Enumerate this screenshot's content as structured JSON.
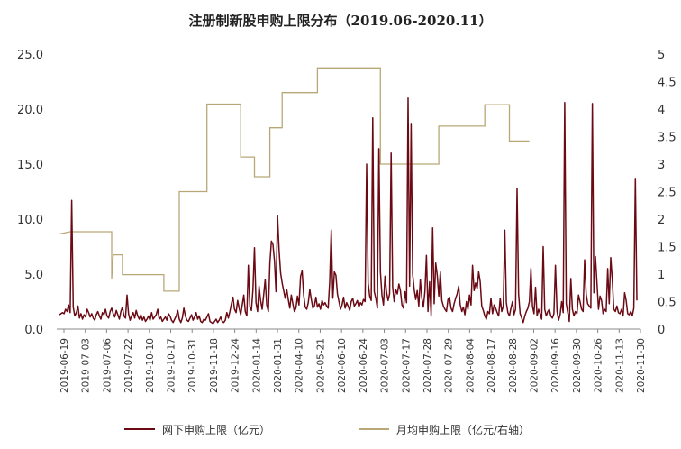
{
  "chart_data": {
    "type": "line",
    "title": "注册制新股申购上限分布（2019.06-2020.11）",
    "grid": false,
    "legend_position": "bottom",
    "colors": {
      "series1": "#6b0a14",
      "series2": "#b8a878"
    },
    "y_left": {
      "lim": [
        0,
        25
      ],
      "ticks": [
        "0.0",
        "5.0",
        "10.0",
        "15.0",
        "20.0",
        "25.0"
      ]
    },
    "y_right": {
      "lim": [
        0,
        5
      ],
      "ticks": [
        "0",
        "0.5",
        "1",
        "1.5",
        "2",
        "2.5",
        "3",
        "3.5",
        "4",
        "4.5",
        "5"
      ]
    },
    "x_tick_labels": [
      "2019-06-19",
      "2019-07-03",
      "2019-07-06",
      "2019-07-22",
      "2019-10-10",
      "2019-10-17",
      "2019-10-31",
      "2019-11-18",
      "2019-12-24",
      "2020-01-14",
      "2020-01-31",
      "2020-04-10",
      "2020-05-21",
      "2020-06-10",
      "2020-06-24",
      "2020-07-03",
      "2020-07-17",
      "2020-07-28",
      "2020-07-29",
      "2020-08-04",
      "2020-08-17",
      "2020-08-28",
      "2020-09-02",
      "2020-09-16",
      "2020-09-30",
      "2020-10-26",
      "2020-11-13",
      "2020-11-30"
    ],
    "series": [
      {
        "name": "网下申购上限（亿元）",
        "axis": "left",
        "values": [
          1.3,
          1.4,
          1.5,
          1.4,
          1.8,
          1.6,
          2.2,
          1.5,
          11.7,
          2.0,
          1.2,
          1.5,
          2.1,
          1.0,
          1.4,
          0.9,
          1.3,
          1.1,
          1.8,
          1.5,
          1.1,
          1.4,
          1.0,
          0.8,
          1.3,
          1.6,
          1.2,
          0.9,
          1.5,
          1.3,
          1.8,
          1.2,
          1.0,
          1.6,
          1.9,
          1.4,
          1.1,
          1.7,
          1.3,
          0.9,
          1.6,
          2.0,
          1.2,
          1.0,
          3.1,
          1.4,
          0.8,
          1.2,
          1.5,
          1.0,
          1.7,
          1.2,
          0.9,
          1.3,
          0.8,
          1.1,
          0.7,
          0.9,
          1.2,
          0.8,
          1.5,
          0.9,
          1.1,
          1.3,
          1.8,
          0.9,
          1.1,
          0.7,
          0.9,
          1.1,
          0.8,
          1.4,
          1.2,
          0.8,
          0.6,
          0.9,
          1.2,
          1.7,
          0.9,
          0.6,
          1.0,
          1.9,
          1.2,
          0.8,
          0.7,
          1.0,
          1.3,
          0.8,
          1.1,
          1.5,
          0.9,
          1.2,
          0.7,
          0.6,
          0.9,
          0.8,
          1.1,
          1.4,
          0.7,
          0.6,
          0.5,
          0.7,
          0.9,
          0.6,
          0.8,
          1.1,
          0.7,
          0.6,
          0.8,
          1.5,
          1.0,
          1.6,
          2.3,
          2.9,
          1.8,
          1.5,
          2.6,
          1.9,
          1.3,
          2.2,
          3.1,
          1.6,
          1.2,
          5.8,
          2.0,
          1.7,
          3.6,
          7.4,
          2.4,
          1.6,
          3.9,
          2.6,
          1.8,
          3.1,
          4.5,
          2.2,
          1.6,
          6.0,
          8.0,
          7.7,
          6.2,
          3.4,
          10.3,
          7.2,
          5.1,
          4.2,
          3.5,
          2.8,
          3.6,
          2.7,
          1.9,
          3.1,
          2.3,
          1.6,
          1.9,
          3.0,
          2.2,
          4.8,
          5.3,
          3.1,
          2.0,
          1.8,
          2.4,
          3.6,
          2.7,
          1.9,
          2.1,
          2.9,
          2.0,
          2.3,
          1.8,
          2.6,
          2.2,
          2.4,
          2.1,
          1.9,
          4.3,
          9.0,
          2.8,
          5.2,
          4.9,
          3.2,
          2.5,
          1.8,
          2.2,
          2.9,
          1.9,
          2.4,
          2.1,
          1.7,
          2.5,
          2.8,
          2.1,
          2.3,
          2.6,
          2.0,
          2.4,
          2.2,
          2.7,
          2.5,
          15.0,
          4.2,
          3.0,
          2.6,
          19.2,
          3.4,
          2.8,
          1.9,
          16.4,
          5.2,
          3.1,
          2.2,
          4.8,
          3.4,
          2.6,
          3.2,
          16.0,
          3.8,
          2.5,
          3.6,
          3.2,
          4.1,
          3.5,
          2.2,
          1.9,
          3.4,
          2.4,
          21.0,
          3.9,
          18.7,
          5.0,
          3.6,
          2.7,
          3.5,
          2.1,
          4.5,
          2.8,
          2.0,
          3.4,
          6.7,
          1.6,
          4.3,
          1.2,
          9.2,
          2.3,
          6.0,
          4.9,
          3.0,
          5.2,
          2.6,
          2.1,
          1.8,
          1.6,
          2.7,
          2.9,
          1.9,
          1.6,
          2.3,
          2.8,
          3.2,
          3.9,
          2.2,
          1.6,
          2.0,
          1.3,
          2.5,
          1.8,
          3.1,
          2.2,
          5.8,
          3.5,
          4.2,
          3.7,
          5.2,
          4.3,
          2.1,
          1.7,
          1.2,
          0.9,
          1.6,
          1.4,
          2.8,
          1.4,
          2.2,
          1.9,
          1.5,
          1.2,
          2.8,
          1.6,
          2.1,
          9.0,
          2.4,
          1.5,
          1.2,
          1.9,
          2.5,
          1.3,
          1.8,
          12.8,
          3.2,
          1.4,
          1.0,
          0.6,
          1.2,
          1.6,
          1.9,
          2.5,
          5.5,
          2.1,
          1.4,
          3.8,
          1.2,
          1.8,
          1.4,
          0.9,
          7.5,
          1.8,
          1.2,
          1.6,
          1.8,
          1.2,
          1.0,
          1.4,
          5.8,
          1.6,
          0.8,
          1.3,
          2.5,
          1.5,
          20.6,
          2.3,
          1.5,
          0.7,
          4.6,
          1.8,
          1.2,
          1.6,
          1.4,
          3.1,
          2.5,
          1.8,
          1.6,
          6.3,
          3.2,
          2.3,
          2.1,
          1.9,
          20.5,
          3.3,
          6.6,
          4.2,
          1.8,
          3.0,
          2.6,
          1.4,
          1.8,
          1.6,
          5.5,
          2.3,
          6.5,
          4.5,
          1.8,
          1.6,
          2.1,
          1.5,
          1.4,
          1.8,
          1.2,
          3.3,
          2.6,
          1.4,
          1.3,
          1.6,
          1.2,
          1.9,
          13.7,
          2.6
        ]
      },
      {
        "name": "月均申购上限（亿元/右轴）",
        "axis": "right",
        "steps": [
          [
            0,
            1.73
          ],
          [
            7,
            1.77
          ],
          [
            34,
            1.77
          ],
          [
            34,
            0.92
          ],
          [
            35,
            1.35
          ],
          [
            41,
            1.35
          ],
          [
            41,
            0.99
          ],
          [
            68,
            0.99
          ],
          [
            68,
            0.69
          ],
          [
            78,
            0.69
          ],
          [
            78,
            2.5
          ],
          [
            96,
            2.5
          ],
          [
            96,
            4.09
          ],
          [
            118,
            4.09
          ],
          [
            118,
            3.13
          ],
          [
            127,
            3.13
          ],
          [
            127,
            2.77
          ],
          [
            137,
            2.77
          ],
          [
            137,
            3.66
          ],
          [
            145,
            3.66
          ],
          [
            145,
            4.3
          ],
          [
            168,
            4.3
          ],
          [
            168,
            4.75
          ],
          [
            209,
            4.75
          ],
          [
            209,
            3.0
          ],
          [
            247,
            3.0
          ],
          [
            247,
            3.69
          ],
          [
            277,
            3.69
          ],
          [
            277,
            4.08
          ],
          [
            293,
            4.08
          ],
          [
            293,
            3.42
          ],
          [
            306,
            3.42
          ]
        ]
      }
    ]
  },
  "legend": [
    {
      "label": "网下申购上限（亿元）",
      "color": "#6b0a14"
    },
    {
      "label": "月均申购上限（亿元/右轴）",
      "color": "#b8a878"
    }
  ]
}
